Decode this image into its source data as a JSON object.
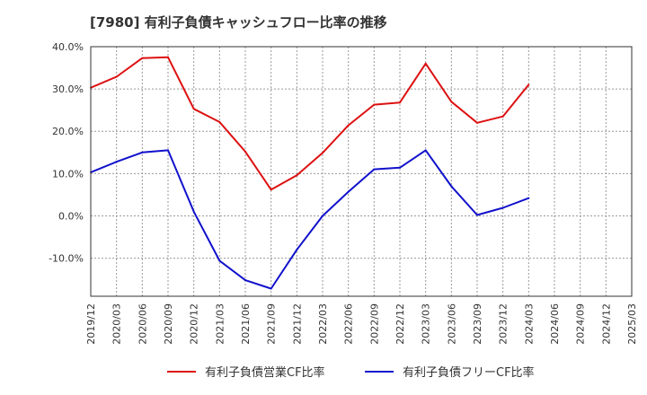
{
  "chart_data": {
    "type": "line",
    "title": "[7980]  有利子負債キャッシュフロー比率の推移",
    "x": [
      "2019/12",
      "2020/03",
      "2020/06",
      "2020/09",
      "2020/12",
      "2021/03",
      "2021/06",
      "2021/09",
      "2021/12",
      "2022/03",
      "2022/06",
      "2022/09",
      "2022/12",
      "2023/03",
      "2023/06",
      "2023/09",
      "2023/12",
      "2024/03",
      "2024/06",
      "2024/09",
      "2024/12",
      "2025/03"
    ],
    "ylim": [
      -19,
      40
    ],
    "yticks": [
      40,
      30,
      20,
      10,
      0,
      -10
    ],
    "ytick_labels": [
      "40.0%",
      "30.0%",
      "20.0%",
      "10.0%",
      "0.0%",
      "-10.0%"
    ],
    "grid": true,
    "legend_position": "bottom",
    "series": [
      {
        "name": "有利子負債営業CF比率",
        "color": "#dd1111",
        "values": [
          30.3,
          32.9,
          37.3,
          37.5,
          25.3,
          22.2,
          15.2,
          6.2,
          9.6,
          14.9,
          21.4,
          26.3,
          26.8,
          36.0,
          27.0,
          22.0,
          23.5,
          31.0,
          null,
          null,
          null,
          null
        ]
      },
      {
        "name": "有利子負債フリーCF比率",
        "color": "#1111cc",
        "values": [
          10.3,
          12.8,
          15.0,
          15.5,
          1.0,
          -10.6,
          -15.2,
          -17.2,
          -8.0,
          0.0,
          5.7,
          11.0,
          11.4,
          15.5,
          7.0,
          0.2,
          1.9,
          4.2,
          null,
          null,
          null,
          null
        ]
      }
    ]
  }
}
